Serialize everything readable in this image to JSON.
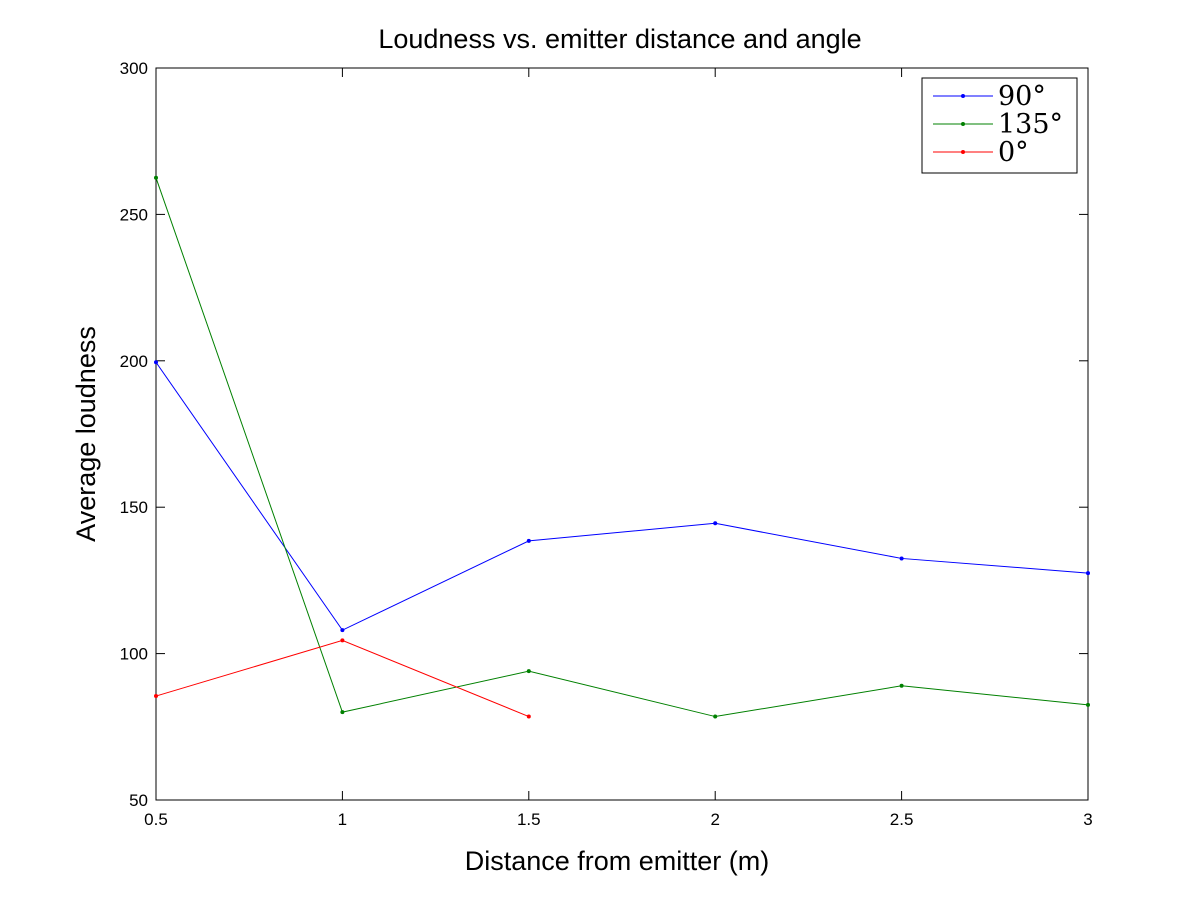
{
  "chart_data": {
    "type": "line",
    "title": "Loudness vs. emitter distance and angle",
    "xlabel": "Distance from emitter (m)",
    "ylabel": "Average loudness",
    "xlim": [
      0.5,
      3
    ],
    "ylim": [
      50,
      300
    ],
    "xticks": [
      0.5,
      1,
      1.5,
      2,
      2.5,
      3
    ],
    "xtick_labels": [
      "0.5",
      "1",
      "1.5",
      "2",
      "2.5",
      "3"
    ],
    "yticks": [
      50,
      100,
      150,
      200,
      250,
      300
    ],
    "ytick_labels": [
      "50",
      "100",
      "150",
      "200",
      "250",
      "300"
    ],
    "grid": false,
    "legend_position": "top-right",
    "series": [
      {
        "name": "90°",
        "color": "#0000ff",
        "x": [
          0.5,
          1,
          1.5,
          2,
          2.5,
          3
        ],
        "y": [
          199.5,
          108,
          138.5,
          144.5,
          132.5,
          127.5
        ]
      },
      {
        "name": "135°",
        "color": "#008000",
        "x": [
          0.5,
          1,
          1.5,
          2,
          2.5,
          3
        ],
        "y": [
          262.5,
          80,
          94,
          78.5,
          89,
          82.5
        ]
      },
      {
        "name": "0°",
        "color": "#ff0000",
        "x": [
          0.5,
          1,
          1.5
        ],
        "y": [
          85.5,
          104.5,
          78.5
        ]
      }
    ]
  }
}
